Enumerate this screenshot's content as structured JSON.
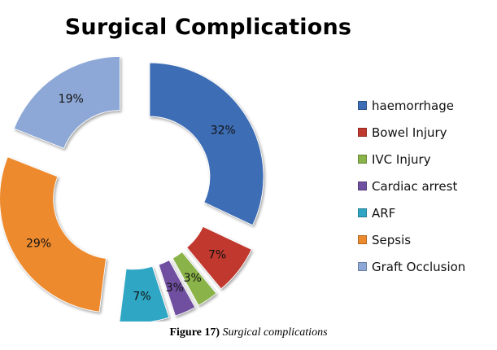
{
  "chart_data": {
    "type": "pie",
    "title": "Surgical Complications",
    "categories": [
      "haemorrhage",
      "Bowel Injury",
      "IVC Injury",
      "Cardiac arrest",
      "ARF",
      "Sepsis",
      "Graft Occlusion"
    ],
    "values": [
      32,
      7,
      3,
      3,
      7,
      29,
      19
    ],
    "value_labels": [
      "32%",
      "7%",
      "3%",
      "3%",
      "7%",
      "29%",
      "19%"
    ],
    "colors": [
      "#3D6DB5",
      "#C0392E",
      "#8AB34A",
      "#7050A0",
      "#2EA6C4",
      "#ED8A2D",
      "#8DA8D6"
    ],
    "legend_position": "right",
    "style": "exploded doughnut"
  },
  "caption": {
    "label": "Figure 17)",
    "text": "Surgical complications"
  }
}
